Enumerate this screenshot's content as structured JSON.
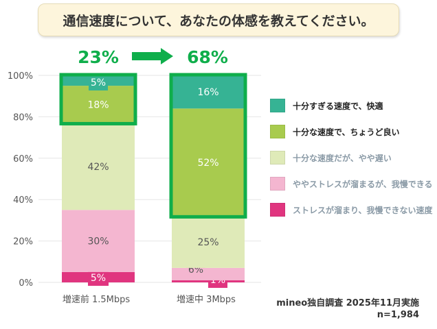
{
  "title": "通信速度について、あなたの体感を教えてください。",
  "highlight": {
    "before": "23%",
    "after": "68%",
    "color": "#0fae4b"
  },
  "source": {
    "line1": "mineo独自調査 2025年11月実施",
    "line2": "n=1,984"
  },
  "chart_data": {
    "type": "bar",
    "stacked": true,
    "categories": [
      "増速前 1.5Mbps",
      "増速中 3Mbps"
    ],
    "ylim": [
      0,
      100
    ],
    "yticks": [
      "0%",
      "20%",
      "40%",
      "60%",
      "80%",
      "100%"
    ],
    "grid": true,
    "legend_position": "right",
    "series": [
      {
        "name": "ストレスが溜まり、我慢できない速度",
        "values": [
          5,
          1
        ],
        "color": "#e0357f",
        "label_color": "#ffffff",
        "legend_text_color": "#8a9aa6"
      },
      {
        "name": "ややストレスが溜まるが、我慢できる",
        "values": [
          30,
          6
        ],
        "color": "#f4b6d0",
        "label_color": "#555555",
        "legend_text_color": "#8a9aa6"
      },
      {
        "name": "十分な速度だが、やや遅い",
        "values": [
          42,
          25
        ],
        "color": "#dfeab8",
        "label_color": "#555555",
        "legend_text_color": "#8a9aa6"
      },
      {
        "name": "十分な速度で、ちょうど良い",
        "values": [
          18,
          52
        ],
        "color": "#a8cb4e",
        "label_color": "#ffffff",
        "legend_text_color": "#222222"
      },
      {
        "name": "十分すぎる速度で、快適",
        "values": [
          5,
          16
        ],
        "color": "#36b394",
        "label_color": "#ffffff",
        "legend_text_color": "#222222"
      }
    ],
    "data_labels": [
      [
        "5%",
        "30%",
        "42%",
        "18%",
        "5%"
      ],
      [
        "1%",
        "6%",
        "25%",
        "52%",
        "16%"
      ]
    ]
  }
}
